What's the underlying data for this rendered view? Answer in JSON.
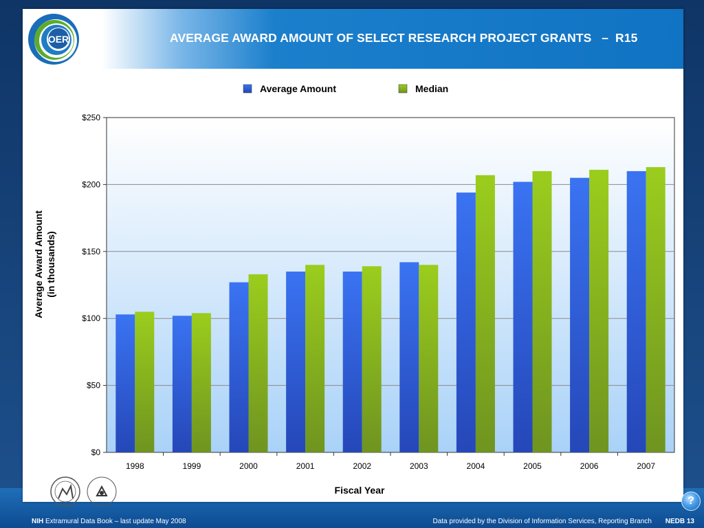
{
  "header": {
    "logo_text": "OER",
    "title": "AVERAGE AWARD AMOUNT OF SELECT RESEARCH PROJECT GRANTS   –  R15"
  },
  "chart_data": {
    "type": "bar",
    "categories": [
      "1998",
      "1999",
      "2000",
      "2001",
      "2002",
      "2003",
      "2004",
      "2005",
      "2006",
      "2007"
    ],
    "series": [
      {
        "name": "Average Amount",
        "color": "#2f6ae8",
        "values": [
          103,
          102,
          127,
          135,
          135,
          142,
          194,
          202,
          205,
          210
        ]
      },
      {
        "name": "Median",
        "color": "#8fc31f",
        "values": [
          105,
          104,
          133,
          140,
          139,
          140,
          207,
          210,
          211,
          213
        ]
      }
    ],
    "y_ticks": [
      "$0",
      "$50",
      "$100",
      "$150",
      "$200",
      "$250"
    ],
    "ylim": [
      0,
      250
    ],
    "xlabel": "Fiscal Year",
    "ylabel_line1": "Average Award Amount",
    "ylabel_line2": "(in thousands)",
    "grid": true,
    "legend_position": "top-center"
  },
  "logos": {
    "hhs_seal": "hhs-seal-icon",
    "nih_seal": "nih-seal-icon",
    "nih_seal_text": "NATIONAL INSTITUTES OF HEALTH"
  },
  "footer": {
    "brand": "NIH",
    "left_text": "Extramural Data Book – last update May 2008",
    "right_text": "Data provided by the Division of Information Services, Reporting Branch",
    "page": "NEDB 13"
  },
  "help_button": {
    "label": "?"
  }
}
